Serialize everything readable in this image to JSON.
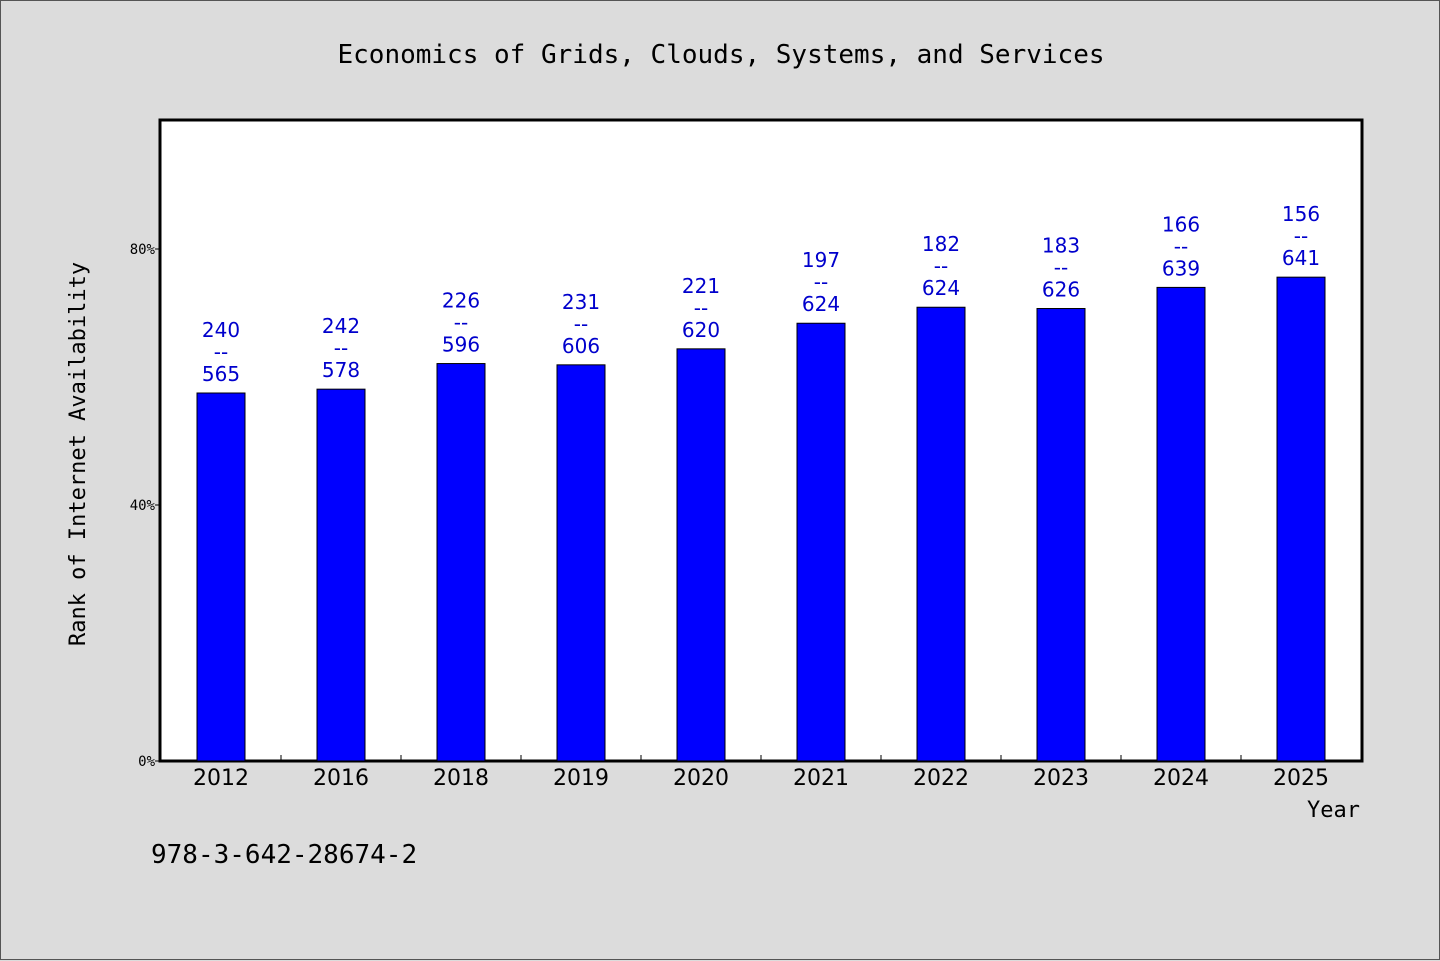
{
  "chart_data": {
    "type": "bar",
    "title": "Economics of Grids, Clouds, Systems, and Services",
    "xlabel": "Year",
    "ylabel": "Rank of Internet Availability",
    "ylim": [
      0,
      100
    ],
    "yticks": [
      0,
      40,
      80
    ],
    "ytick_labels": [
      "0%",
      "40%",
      "80%"
    ],
    "categories": [
      "2012",
      "2016",
      "2018",
      "2019",
      "2020",
      "2021",
      "2022",
      "2023",
      "2024",
      "2025"
    ],
    "values": [
      57.5,
      58.1,
      62.1,
      61.9,
      64.4,
      68.4,
      70.9,
      70.7,
      74.0,
      75.6
    ],
    "bar_labels": [
      {
        "top": "240",
        "mid": "--",
        "bottom": "565"
      },
      {
        "top": "242",
        "mid": "--",
        "bottom": "578"
      },
      {
        "top": "226",
        "mid": "--",
        "bottom": "596"
      },
      {
        "top": "231",
        "mid": "--",
        "bottom": "606"
      },
      {
        "top": "221",
        "mid": "--",
        "bottom": "620"
      },
      {
        "top": "197",
        "mid": "--",
        "bottom": "624"
      },
      {
        "top": "182",
        "mid": "--",
        "bottom": "624"
      },
      {
        "top": "183",
        "mid": "--",
        "bottom": "626"
      },
      {
        "top": "166",
        "mid": "--",
        "bottom": "639"
      },
      {
        "top": "156",
        "mid": "--",
        "bottom": "641"
      }
    ],
    "bar_color": "#0000ff",
    "label_color": "#0000cc",
    "grid": false
  },
  "footer": {
    "isbn": "978-3-642-28674-2"
  }
}
